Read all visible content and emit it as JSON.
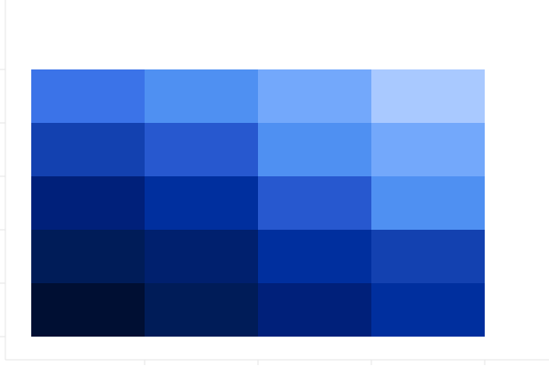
{
  "chart_data": {
    "type": "heatmap",
    "rows": 5,
    "cols": 4,
    "cells": [
      [
        "#3b73e8",
        "#4f90f2",
        "#73a8fb",
        "#a9c9ff"
      ],
      [
        "#1341b0",
        "#2758cf",
        "#4f90f2",
        "#73a8fb"
      ],
      [
        "#00207a",
        "#002f9e",
        "#2758cf",
        "#4f90f2"
      ],
      [
        "#001c58",
        "#00206e",
        "#002f9e",
        "#1341b0"
      ],
      [
        "#000f33",
        "#001c58",
        "#00207a",
        "#002f9e"
      ]
    ],
    "colors": {
      "axis": "#e6e6e6",
      "background": "#ffffff"
    },
    "grid": false,
    "legend": "none",
    "title": "",
    "xlabel": "",
    "ylabel": ""
  }
}
